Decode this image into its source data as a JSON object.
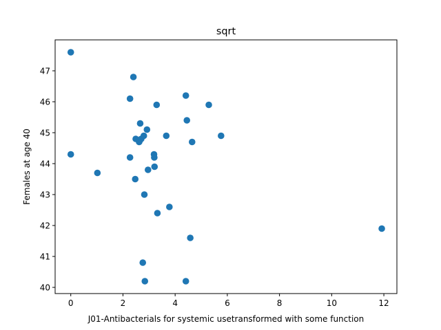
{
  "chart_data": {
    "type": "scatter",
    "title": "sqrt",
    "xlabel": "J01-Antibacterials for systemic usetransformed with some function",
    "ylabel": "Females at age 40",
    "xlim": [
      -0.6,
      12.5
    ],
    "ylim": [
      39.8,
      48.0
    ],
    "xticks": [
      0,
      2,
      4,
      6,
      8,
      10,
      12
    ],
    "yticks": [
      40,
      41,
      42,
      43,
      44,
      45,
      46,
      47
    ],
    "grid": false,
    "marker_color": "#1f77b4",
    "points": [
      {
        "x": 0.0,
        "y": 47.6
      },
      {
        "x": 0.0,
        "y": 44.3
      },
      {
        "x": 1.02,
        "y": 43.7
      },
      {
        "x": 2.27,
        "y": 46.1
      },
      {
        "x": 2.27,
        "y": 44.2
      },
      {
        "x": 2.4,
        "y": 46.8
      },
      {
        "x": 2.47,
        "y": 43.5
      },
      {
        "x": 2.49,
        "y": 44.8
      },
      {
        "x": 2.62,
        "y": 44.7
      },
      {
        "x": 2.65,
        "y": 44.75
      },
      {
        "x": 2.66,
        "y": 45.3
      },
      {
        "x": 2.7,
        "y": 44.8
      },
      {
        "x": 2.76,
        "y": 40.8
      },
      {
        "x": 2.8,
        "y": 44.9
      },
      {
        "x": 2.82,
        "y": 43.0
      },
      {
        "x": 2.84,
        "y": 40.2
      },
      {
        "x": 2.92,
        "y": 45.1
      },
      {
        "x": 2.96,
        "y": 43.8
      },
      {
        "x": 3.19,
        "y": 44.3
      },
      {
        "x": 3.2,
        "y": 44.2
      },
      {
        "x": 3.21,
        "y": 43.9
      },
      {
        "x": 3.29,
        "y": 45.9
      },
      {
        "x": 3.32,
        "y": 42.4
      },
      {
        "x": 3.66,
        "y": 44.9
      },
      {
        "x": 3.78,
        "y": 42.6
      },
      {
        "x": 4.41,
        "y": 46.2
      },
      {
        "x": 4.41,
        "y": 40.2
      },
      {
        "x": 4.45,
        "y": 45.4
      },
      {
        "x": 4.58,
        "y": 41.6
      },
      {
        "x": 4.65,
        "y": 44.7
      },
      {
        "x": 5.29,
        "y": 45.9
      },
      {
        "x": 5.76,
        "y": 44.9
      },
      {
        "x": 11.92,
        "y": 41.9
      }
    ]
  }
}
